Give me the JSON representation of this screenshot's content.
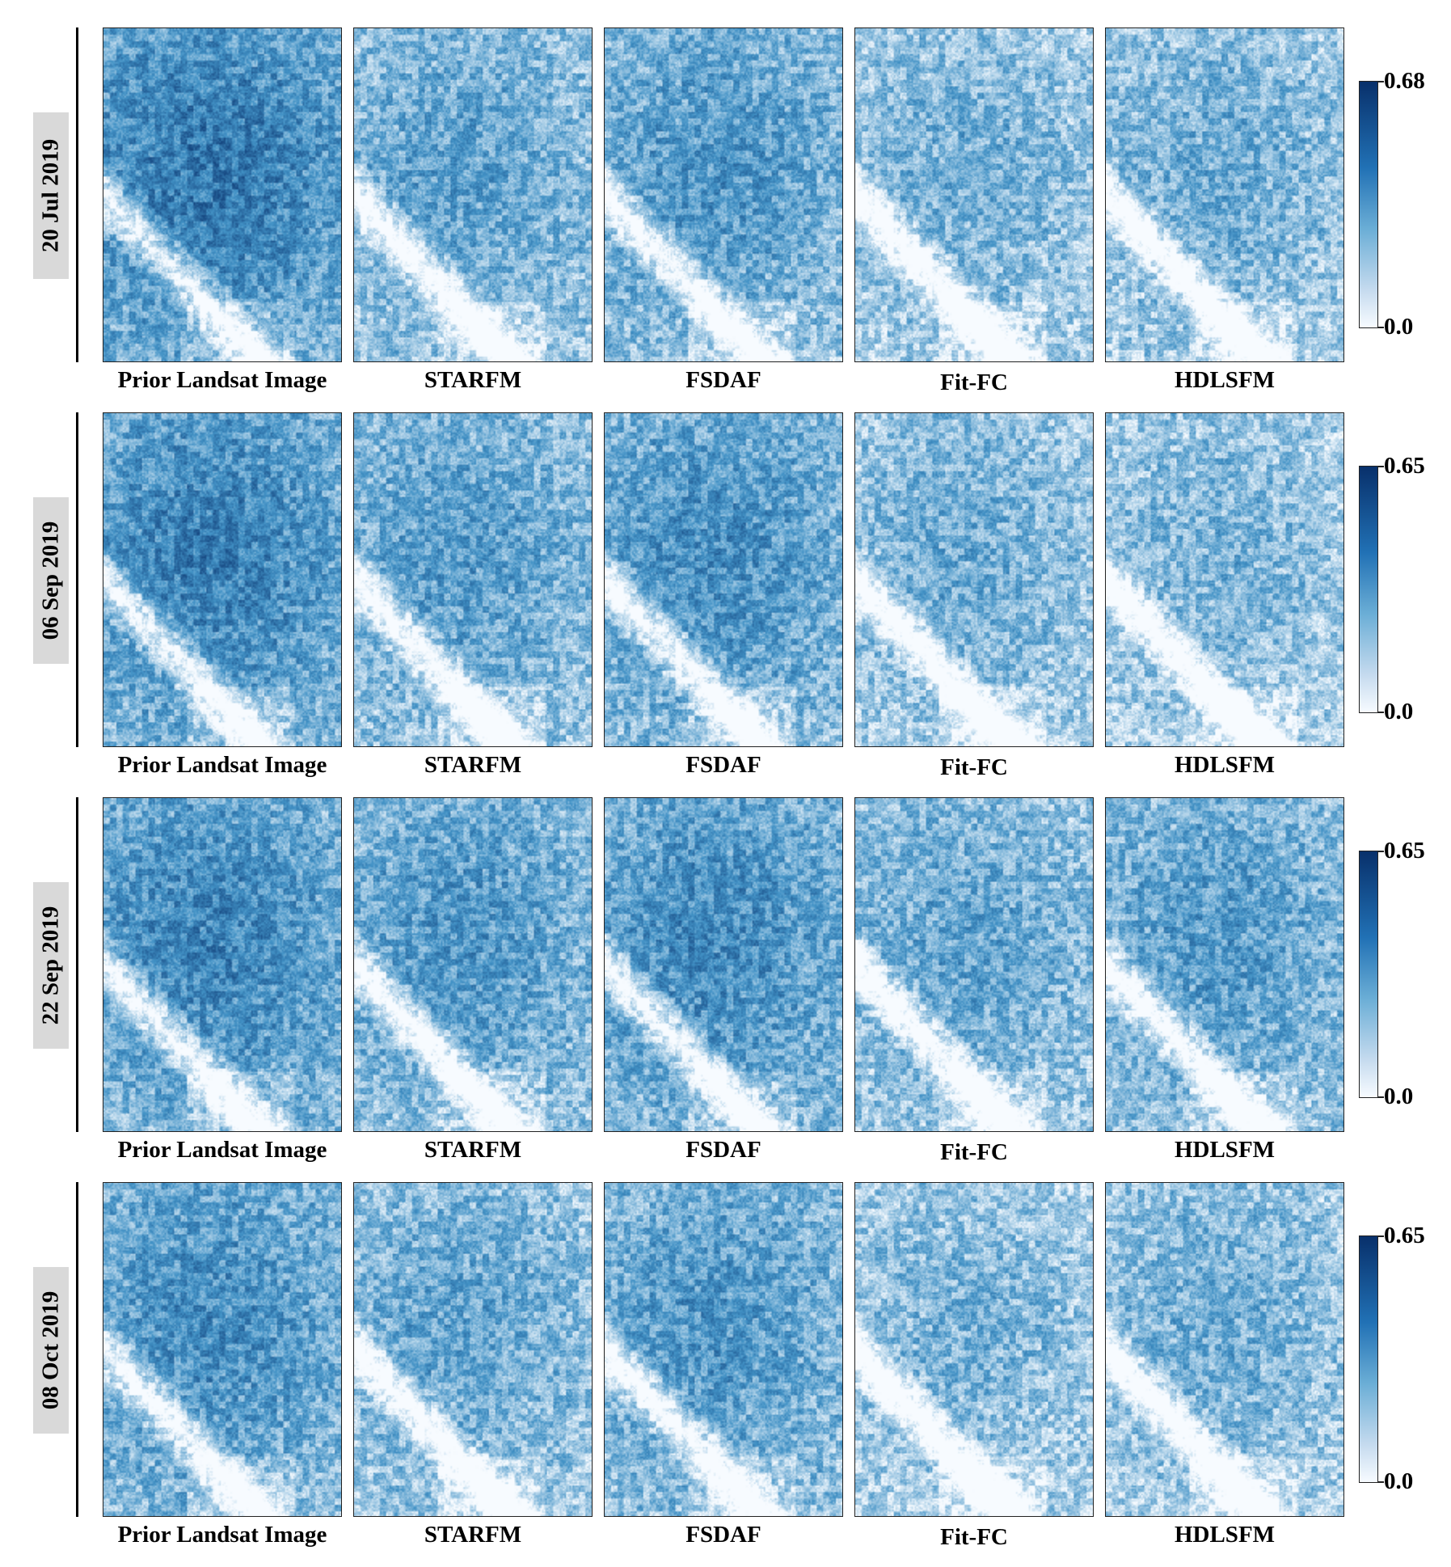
{
  "rows": [
    {
      "date": "20 Jul 2019",
      "colorbar": {
        "max": "0.68",
        "min": "0.0"
      },
      "panels": [
        {
          "caption": "Prior Landsat Image",
          "mean_intensity": 0.55
        },
        {
          "caption": "STARFM",
          "mean_intensity": 0.38
        },
        {
          "caption": "FSDAF",
          "mean_intensity": 0.42
        },
        {
          "caption": "Fit-FC",
          "mean_intensity": 0.32
        },
        {
          "caption": "HDLSFM",
          "mean_intensity": 0.33
        }
      ]
    },
    {
      "date": "06 Sep 2019",
      "colorbar": {
        "max": "0.65",
        "min": "0.0"
      },
      "panels": [
        {
          "caption": "Prior Landsat Image",
          "mean_intensity": 0.52
        },
        {
          "caption": "STARFM",
          "mean_intensity": 0.4
        },
        {
          "caption": "FSDAF",
          "mean_intensity": 0.45
        },
        {
          "caption": "Fit-FC",
          "mean_intensity": 0.33
        },
        {
          "caption": "HDLSFM",
          "mean_intensity": 0.3
        }
      ]
    },
    {
      "date": "22 Sep 2019",
      "colorbar": {
        "max": "0.65",
        "min": "0.0"
      },
      "panels": [
        {
          "caption": "Prior Landsat Image",
          "mean_intensity": 0.5
        },
        {
          "caption": "STARFM",
          "mean_intensity": 0.42
        },
        {
          "caption": "FSDAF",
          "mean_intensity": 0.47
        },
        {
          "caption": "Fit-FC",
          "mean_intensity": 0.36
        },
        {
          "caption": "HDLSFM",
          "mean_intensity": 0.4
        }
      ]
    },
    {
      "date": "08 Oct 2019",
      "colorbar": {
        "max": "0.65",
        "min": "0.0"
      },
      "panels": [
        {
          "caption": "Prior Landsat Image",
          "mean_intensity": 0.46
        },
        {
          "caption": "STARFM",
          "mean_intensity": 0.36
        },
        {
          "caption": "FSDAF",
          "mean_intensity": 0.42
        },
        {
          "caption": "Fit-FC",
          "mean_intensity": 0.3
        },
        {
          "caption": "HDLSFM",
          "mean_intensity": 0.32
        }
      ]
    }
  ],
  "colormap": {
    "high": "#08306b",
    "mid": "#4292c6",
    "low": "#f7fbff"
  }
}
